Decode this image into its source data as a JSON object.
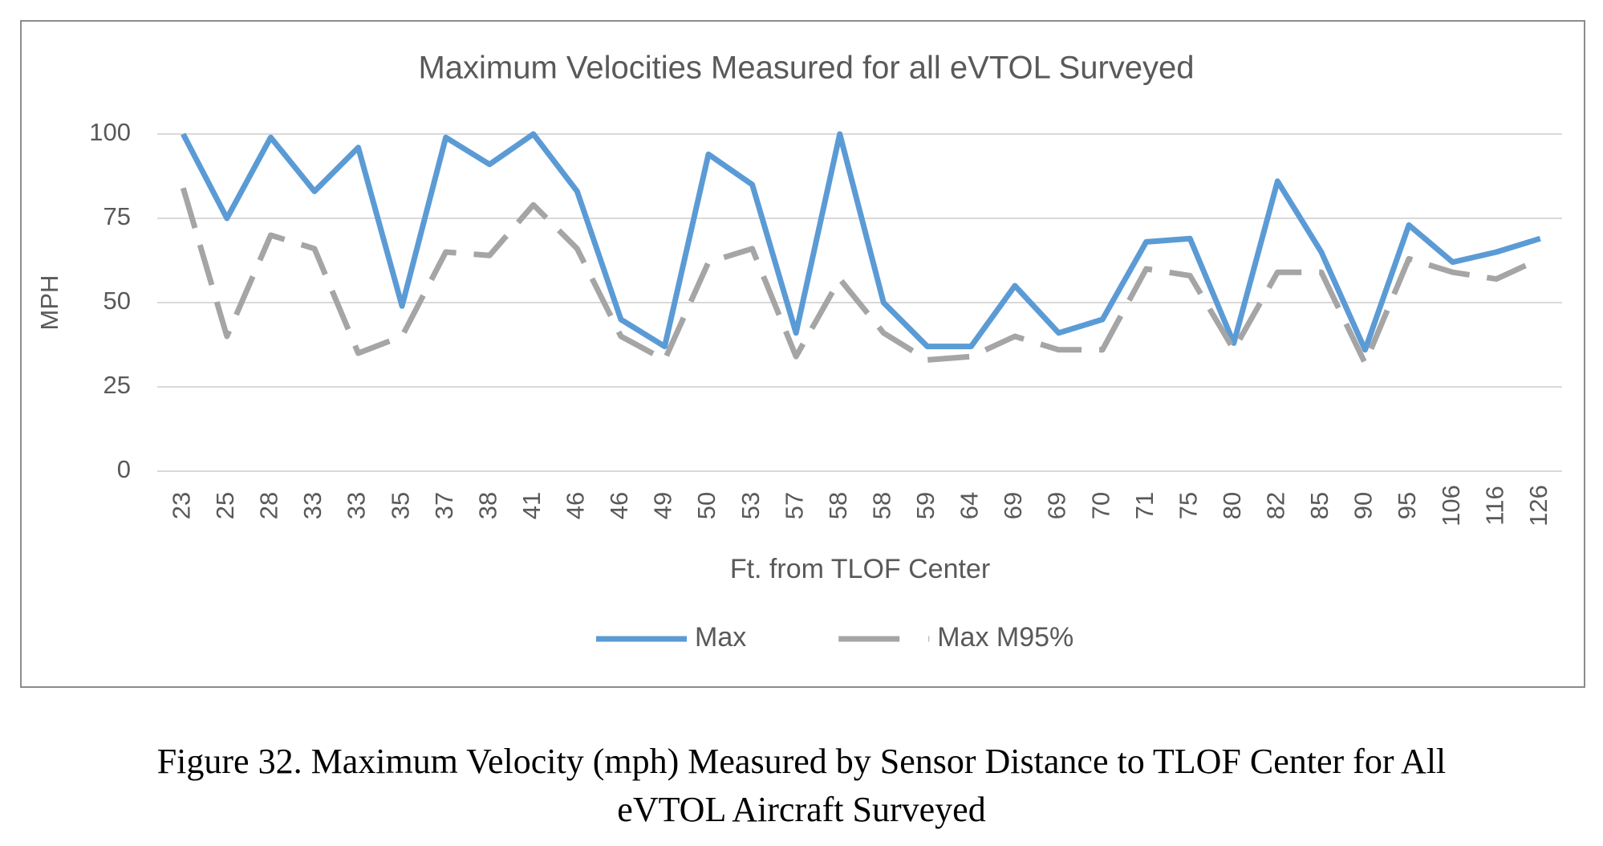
{
  "chart_data": {
    "type": "line",
    "title": "Maximum Velocities Measured for all eVTOL Surveyed",
    "x_label": "Ft. from TLOF Center",
    "y_label": "MPH",
    "categories": [
      "23",
      "25",
      "28",
      "33",
      "33",
      "35",
      "37",
      "38",
      "41",
      "46",
      "46",
      "49",
      "50",
      "53",
      "57",
      "58",
      "58",
      "59",
      "64",
      "69",
      "69",
      "70",
      "71",
      "75",
      "80",
      "82",
      "85",
      "90",
      "95",
      "106",
      "116",
      "126"
    ],
    "series": [
      {
        "name": "Max",
        "color": "#5b9bd5",
        "dashed": false,
        "values": [
          100,
          75,
          99,
          83,
          96,
          49,
          99,
          91,
          100,
          83,
          45,
          37,
          94,
          85,
          41,
          100,
          50,
          37,
          37,
          55,
          41,
          45,
          68,
          69,
          38,
          86,
          65,
          36,
          73,
          62,
          65,
          69
        ]
      },
      {
        "name": "Max M95%",
        "color": "#a5a5a5",
        "dashed": true,
        "values": [
          84,
          40,
          70,
          66,
          35,
          40,
          65,
          64,
          79,
          66,
          40,
          33,
          62,
          66,
          34,
          57,
          41,
          33,
          34,
          40,
          36,
          36,
          60,
          58,
          36,
          59,
          59,
          32,
          63,
          59,
          57,
          63
        ]
      }
    ],
    "ylim": [
      0,
      100
    ],
    "yticks": [
      0,
      25,
      50,
      75,
      100
    ],
    "grid": true
  },
  "caption": [
    "Figure 32. Maximum Velocity (mph) Measured by Sensor Distance to TLOF Center for All",
    "eVTOL Aircraft Surveyed"
  ]
}
